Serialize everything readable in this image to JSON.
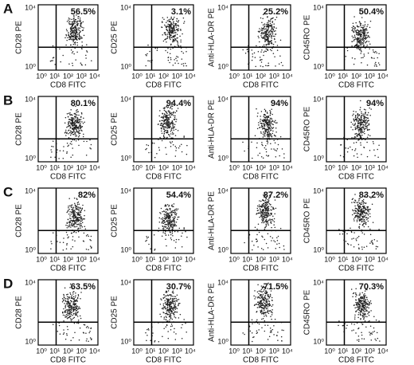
{
  "rows": [
    {
      "label": "A",
      "panels": [
        {
          "ylabel": "CD28 PE",
          "xlabel": "CD8 FITC",
          "percent": "56.5%",
          "xticks": [
            "10⁰",
            "10¹",
            "10²",
            "10³",
            "10⁴"
          ],
          "yticks": [
            "10⁴",
            "10⁰"
          ]
        },
        {
          "ylabel": "CD25 PE",
          "xlabel": "CD8 FITC",
          "percent": "3.1%",
          "xticks": [
            "10⁰",
            "10¹",
            "10²",
            "10³",
            "10⁴"
          ],
          "yticks": [
            "10⁴",
            "10⁰"
          ]
        },
        {
          "ylabel": "Anti-HLA-DR PE",
          "xlabel": "CD8 FITC",
          "percent": "25.2%",
          "xticks": [
            "10⁰",
            "10¹",
            "10²",
            "10³",
            "10⁴"
          ],
          "yticks": [
            "10⁴",
            "10⁰"
          ]
        },
        {
          "ylabel": "CD45RO PE",
          "xlabel": "CD8 FITC",
          "percent": "50.4%",
          "xticks": [
            "10⁰",
            "10¹",
            "10²",
            "10³",
            "10⁴"
          ],
          "yticks": [
            "10⁴",
            "10⁰"
          ]
        }
      ]
    },
    {
      "label": "B",
      "panels": [
        {
          "ylabel": "CD28 PE",
          "xlabel": "CD8 FITC",
          "percent": "80.1%",
          "xticks": [
            "10⁰",
            "10¹",
            "10²",
            "10³",
            "10⁴"
          ],
          "yticks": [
            "10⁴",
            "10⁰"
          ]
        },
        {
          "ylabel": "CD25 PE",
          "xlabel": "CD8 FITC",
          "percent": "94.4%",
          "xticks": [
            "10⁰",
            "10¹",
            "10²",
            "10³",
            "10⁴"
          ],
          "yticks": [
            "10⁴",
            "10⁰"
          ]
        },
        {
          "ylabel": "Anti-HLA-DR PE",
          "xlabel": "CD8 FITC",
          "percent": "94%",
          "xticks": [
            "10⁰",
            "10¹",
            "10²",
            "10³",
            "10⁴"
          ],
          "yticks": [
            "10⁴",
            "10⁰"
          ]
        },
        {
          "ylabel": "CD45RO PE",
          "xlabel": "CD8 FITC",
          "percent": "94%",
          "xticks": [
            "10⁰",
            "10¹",
            "10²",
            "10³",
            "10⁴"
          ],
          "yticks": [
            "10⁴",
            "10⁰"
          ]
        }
      ]
    },
    {
      "label": "C",
      "panels": [
        {
          "ylabel": "CD28 PE",
          "xlabel": "CD8 FITC",
          "percent": "82%",
          "xticks": [
            "10⁰",
            "10¹",
            "10²",
            "10³",
            "10⁴"
          ],
          "yticks": [
            "10⁴",
            "10⁰"
          ]
        },
        {
          "ylabel": "CD25 PE",
          "xlabel": "CD8 FITC",
          "percent": "54.4%",
          "xticks": [
            "10⁰",
            "10¹",
            "10²",
            "10³",
            "10⁴"
          ],
          "yticks": [
            "10⁴",
            "10⁰"
          ]
        },
        {
          "ylabel": "Anti-HLA-DR PE",
          "xlabel": "CD8 FITC",
          "percent": "87.2%",
          "xticks": [
            "10⁰",
            "10¹",
            "10²",
            "10³",
            "10⁴"
          ],
          "yticks": [
            "10⁴",
            "10⁰"
          ]
        },
        {
          "ylabel": "CD45RO PE",
          "xlabel": "CD8 FITC",
          "percent": "83.2%",
          "xticks": [
            "10⁰",
            "10¹",
            "10²",
            "10³",
            "10⁴"
          ],
          "yticks": [
            "10⁴",
            "10⁰"
          ]
        }
      ]
    },
    {
      "label": "D",
      "panels": [
        {
          "ylabel": "CD28 PE",
          "xlabel": "CD8 FITC",
          "percent": "63.5%",
          "xticks": [
            "10⁰",
            "10¹",
            "10²",
            "10³",
            "10⁴"
          ],
          "yticks": [
            "10⁴",
            "10⁰"
          ]
        },
        {
          "ylabel": "CD25 PE",
          "xlabel": "CD8 FITC",
          "percent": "30.7%",
          "xticks": [
            "10⁰",
            "10¹",
            "10²",
            "10³",
            "10⁴"
          ],
          "yticks": [
            "10⁴",
            "10⁰"
          ]
        },
        {
          "ylabel": "Anti-HLA-DR PE",
          "xlabel": "CD8 FITC",
          "percent": "71.5%",
          "xticks": [
            "10⁰",
            "10¹",
            "10²",
            "10³",
            "10⁴"
          ],
          "yticks": [
            "10⁴",
            "10⁰"
          ]
        },
        {
          "ylabel": "CD45RO PE",
          "xlabel": "CD8 FITC",
          "percent": "70.3%",
          "xticks": [
            "10⁰",
            "10¹",
            "10²",
            "10³",
            "10⁴"
          ],
          "yticks": [
            "10⁴",
            "10⁰"
          ]
        }
      ]
    }
  ]
}
